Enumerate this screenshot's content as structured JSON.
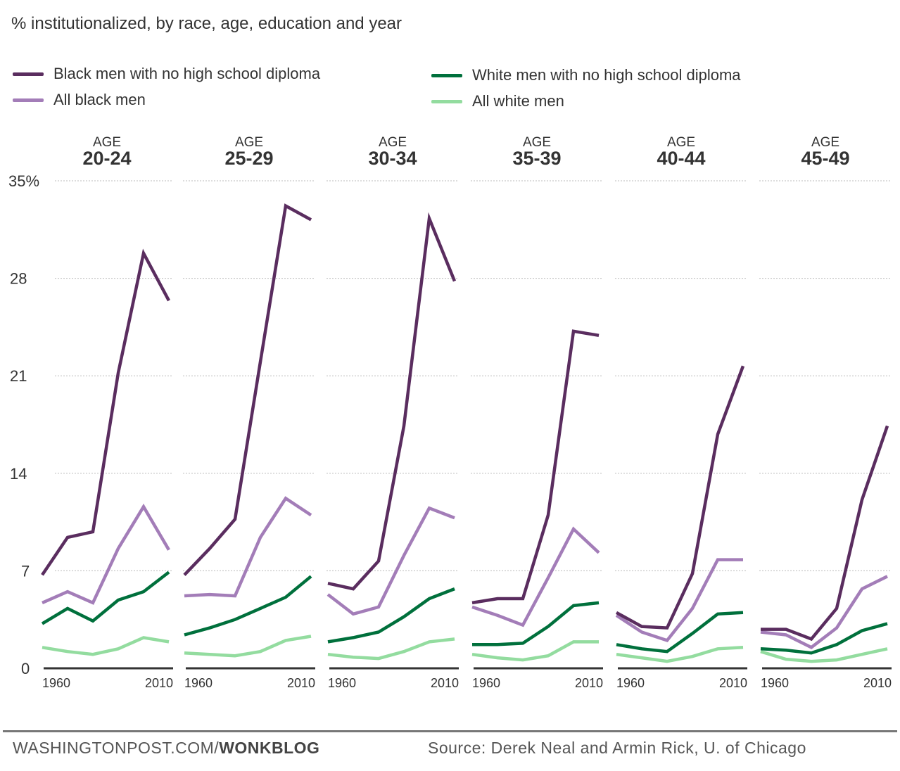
{
  "subtitle": "% institutionalized, by race, age, education and year",
  "footer": {
    "credit_prefix": "WASHINGTONPOST.COM/",
    "credit_bold": "WONKBLOG",
    "source": "Source: Derek Neal and Armin Rick, U. of Chicago"
  },
  "chart_data": {
    "type": "line",
    "subtitle": "% institutionalized, by race, age, education and year",
    "x": [
      1960,
      1970,
      1980,
      1990,
      2000,
      2010
    ],
    "x_tick_labels": [
      "1960",
      "2010"
    ],
    "y_ticks": [
      0,
      7,
      14,
      21,
      28,
      35
    ],
    "y_tick_labels": [
      "0",
      "7",
      "14",
      "21",
      "28",
      "35%"
    ],
    "ylim": [
      0,
      35
    ],
    "grid": true,
    "legend_placement": "top",
    "series_styles": [
      {
        "name": "Black men with no high school diploma",
        "color": "#5a2d5f"
      },
      {
        "name": "All black men",
        "color": "#a37db8"
      },
      {
        "name": "White men with no high school diploma",
        "color": "#00703c"
      },
      {
        "name": "All white men",
        "color": "#93dc9f"
      }
    ],
    "panels": [
      {
        "label_top": "AGE",
        "label": "20-24",
        "series": [
          [
            6.7,
            9.4,
            9.8,
            21.2,
            29.8,
            26.4
          ],
          [
            4.7,
            5.5,
            4.7,
            8.6,
            11.6,
            8.5
          ],
          [
            3.2,
            4.3,
            3.4,
            4.9,
            5.5,
            6.9
          ],
          [
            1.5,
            1.2,
            1.0,
            1.4,
            2.2,
            1.9
          ]
        ]
      },
      {
        "label_top": "AGE",
        "label": "25-29",
        "series": [
          [
            6.7,
            8.6,
            10.7,
            22.0,
            33.2,
            32.2
          ],
          [
            5.2,
            5.3,
            5.2,
            9.4,
            12.2,
            11.0
          ],
          [
            2.4,
            2.9,
            3.5,
            4.3,
            5.1,
            6.6
          ],
          [
            1.1,
            1.0,
            0.9,
            1.2,
            2.0,
            2.3
          ]
        ]
      },
      {
        "label_top": "AGE",
        "label": "30-34",
        "series": [
          [
            6.1,
            5.7,
            7.7,
            17.4,
            32.3,
            27.8
          ],
          [
            5.3,
            3.9,
            4.4,
            8.1,
            11.5,
            10.8
          ],
          [
            1.9,
            2.2,
            2.6,
            3.7,
            5.0,
            5.7
          ],
          [
            1.0,
            0.8,
            0.7,
            1.2,
            1.9,
            2.1
          ]
        ]
      },
      {
        "label_top": "AGE",
        "label": "35-39",
        "series": [
          [
            4.7,
            5.0,
            5.0,
            11.0,
            24.2,
            23.9
          ],
          [
            4.4,
            3.8,
            3.1,
            6.5,
            10.0,
            8.3
          ],
          [
            1.7,
            1.7,
            1.8,
            3.0,
            4.5,
            4.7
          ],
          [
            1.0,
            0.75,
            0.6,
            0.9,
            1.9,
            1.9
          ]
        ]
      },
      {
        "label_top": "AGE",
        "label": "40-44",
        "series": [
          [
            4.0,
            3.0,
            2.9,
            6.8,
            16.8,
            21.7
          ],
          [
            3.8,
            2.6,
            2.0,
            4.3,
            7.8,
            7.8
          ],
          [
            1.7,
            1.4,
            1.2,
            2.5,
            3.9,
            4.0
          ],
          [
            1.0,
            0.75,
            0.5,
            0.85,
            1.4,
            1.5
          ]
        ]
      },
      {
        "label_top": "AGE",
        "label": "45-49",
        "series": [
          [
            2.8,
            2.8,
            2.1,
            4.3,
            12.1,
            17.4
          ],
          [
            2.6,
            2.4,
            1.5,
            2.9,
            5.7,
            6.6
          ],
          [
            1.4,
            1.3,
            1.1,
            1.7,
            2.7,
            3.2
          ],
          [
            1.2,
            0.65,
            0.5,
            0.6,
            1.0,
            1.4
          ]
        ]
      }
    ]
  }
}
